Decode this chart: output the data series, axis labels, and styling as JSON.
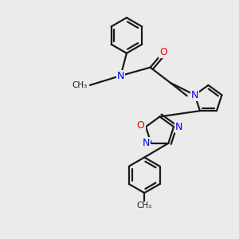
{
  "bg_color": "#ebebeb",
  "bond_color": "#1a1a1a",
  "N_color": "#0000ee",
  "O_color": "#ee0000",
  "line_width": 1.6,
  "figsize": [
    3.0,
    3.0
  ],
  "dpi": 100,
  "xlim": [
    0,
    10
  ],
  "ylim": [
    0,
    10
  ]
}
